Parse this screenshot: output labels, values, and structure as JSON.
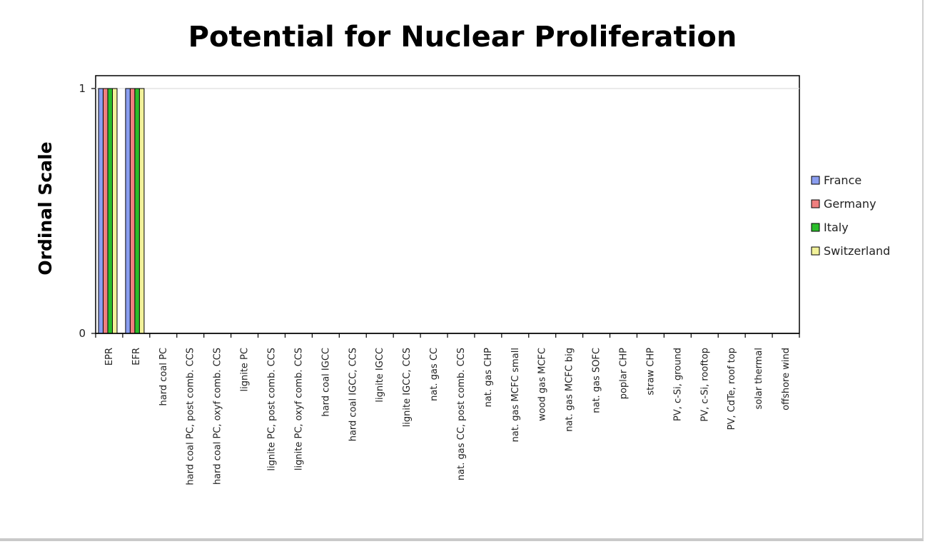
{
  "chart_data": {
    "type": "bar",
    "title": "Potential for Nuclear Proliferation",
    "xlabel": "",
    "ylabel": "Ordinal Scale",
    "ylim": [
      0,
      1
    ],
    "yticks": [
      "0",
      "1"
    ],
    "grid": "horizontal",
    "legend_position": "right",
    "categories": [
      "EPR",
      "EFR",
      "hard coal PC",
      "hard coal PC, post comb. CCS",
      "hard coal PC, oxyf comb. CCS",
      "lignite PC",
      "lignite PC, post comb. CCS",
      "lignite PC, oxyf comb. CCS",
      "hard coal IGCC",
      "hard coal IGCC, CCS",
      "lignite IGCC",
      "lignite IGCC, CCS",
      "nat. gas CC",
      "nat. gas CC, post comb. CCS",
      "nat. gas CHP",
      "nat. gas MCFC small",
      "wood gas MCFC",
      "nat. gas MCFC big",
      "nat. gas SOFC",
      "poplar CHP",
      "straw CHP",
      "PV, c-Si, ground",
      "PV, c-Si, rooftop",
      "PV, CdTe, roof top",
      "solar thermal",
      "offshore wind"
    ],
    "series": [
      {
        "name": "France",
        "color": "#8b9ef0",
        "values": [
          1,
          1,
          0,
          0,
          0,
          0,
          0,
          0,
          0,
          0,
          0,
          0,
          0,
          0,
          0,
          0,
          0,
          0,
          0,
          0,
          0,
          0,
          0,
          0,
          0,
          0
        ]
      },
      {
        "name": "Germany",
        "color": "#ef7f7f",
        "values": [
          1,
          1,
          0,
          0,
          0,
          0,
          0,
          0,
          0,
          0,
          0,
          0,
          0,
          0,
          0,
          0,
          0,
          0,
          0,
          0,
          0,
          0,
          0,
          0,
          0,
          0
        ]
      },
      {
        "name": "Italy",
        "color": "#2bbd2b",
        "values": [
          1,
          1,
          0,
          0,
          0,
          0,
          0,
          0,
          0,
          0,
          0,
          0,
          0,
          0,
          0,
          0,
          0,
          0,
          0,
          0,
          0,
          0,
          0,
          0,
          0,
          0
        ]
      },
      {
        "name": "Switzerland",
        "color": "#f2f29a",
        "values": [
          1,
          1,
          0,
          0,
          0,
          0,
          0,
          0,
          0,
          0,
          0,
          0,
          0,
          0,
          0,
          0,
          0,
          0,
          0,
          0,
          0,
          0,
          0,
          0,
          0,
          0
        ]
      }
    ]
  }
}
